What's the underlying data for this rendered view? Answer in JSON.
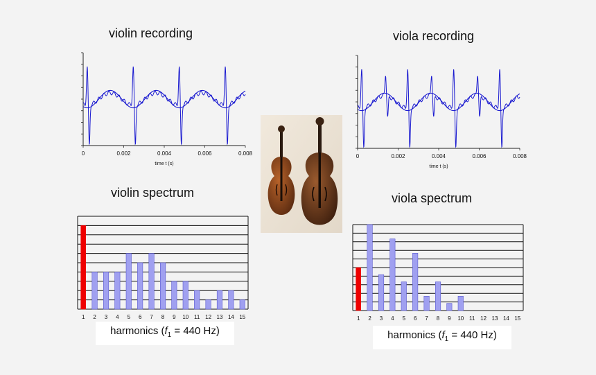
{
  "titles": {
    "violin_recording": "violin  recording",
    "viola_recording": "viola  recording",
    "violin_spectrum": "violin  spectrum",
    "viola_spectrum": "viola  spectrum"
  },
  "harmonics_label": {
    "prefix": "harmonics (",
    "f": "f",
    "sub": "1",
    "suffix": " = 440 Hz)"
  },
  "colors": {
    "wave": "#1a1ad0",
    "fundamental": "#ee0000",
    "harmonic": "#a0a0f0",
    "harmonic_edge": "#5a5ad0"
  },
  "photo": {
    "subject": "violin and viola photo"
  },
  "chart_data": [
    {
      "type": "line",
      "name": "violin recording",
      "xlabel": "time t (s)",
      "xlim": [
        0,
        0.008
      ],
      "xticks": [
        "0",
        "0.002",
        "0.004",
        "0.006",
        "0.008"
      ],
      "period_s": 0.00227,
      "first_peak_s": 0.0002,
      "series": [
        {
          "name": "",
          "kind": "waveform"
        },
        {
          "name": "",
          "kind": "fundamental sine"
        }
      ]
    },
    {
      "type": "line",
      "name": "viola recording",
      "xlabel": "time t (s)",
      "xlim": [
        0,
        0.008
      ],
      "xticks": [
        "0",
        "0.002",
        "0.004",
        "0.006",
        "0.008"
      ],
      "period_s": 0.00227,
      "first_peak_s": 0.0002,
      "series": [
        {
          "name": "",
          "kind": "waveform"
        },
        {
          "name": "",
          "kind": "fundamental sine"
        }
      ]
    },
    {
      "type": "bar",
      "name": "violin spectrum",
      "categories": [
        "1",
        "2",
        "3",
        "4",
        "5",
        "6",
        "7",
        "8",
        "9",
        "10",
        "11",
        "12",
        "13",
        "14",
        "15"
      ],
      "values": [
        9,
        4,
        4,
        4,
        6,
        5,
        6,
        5,
        3,
        3,
        2,
        1,
        2,
        2,
        1
      ],
      "ylim": [
        0,
        10
      ],
      "grid": true
    },
    {
      "type": "bar",
      "name": "viola spectrum",
      "categories": [
        "1",
        "2",
        "3",
        "4",
        "5",
        "6",
        "7",
        "8",
        "9",
        "10",
        "11",
        "12",
        "13",
        "14",
        "15"
      ],
      "values": [
        3,
        6,
        2.5,
        5,
        2,
        4,
        1,
        2,
        0.5,
        1,
        0,
        0,
        0,
        0,
        0
      ],
      "ylim": [
        0,
        6
      ],
      "grid": true
    }
  ]
}
